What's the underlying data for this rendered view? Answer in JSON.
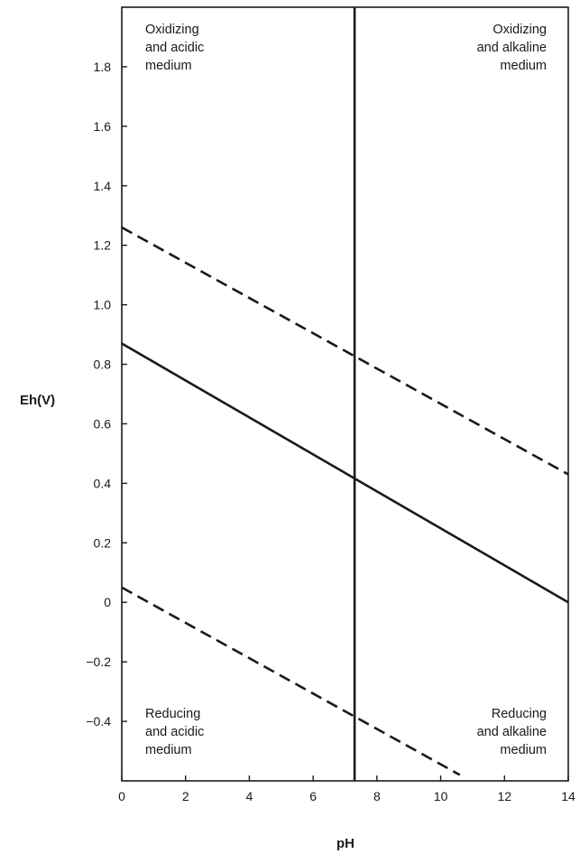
{
  "chart_data": {
    "type": "line",
    "xlabel": "pH",
    "ylabel": "Eh(V)",
    "xlim": [
      0,
      14
    ],
    "ylim": [
      -0.6,
      2.0
    ],
    "x_ticks": [
      0,
      2,
      4,
      6,
      8,
      10,
      12,
      14
    ],
    "x_tick_labels": [
      "0",
      "2",
      "4",
      "6",
      "8",
      "10",
      "12",
      "14"
    ],
    "y_ticks": [
      -0.4,
      -0.2,
      0,
      0.2,
      0.4,
      0.6,
      0.8,
      1.0,
      1.2,
      1.4,
      1.6,
      1.8
    ],
    "y_tick_labels": [
      "−0.4",
      "−0.2",
      "0",
      "0.2",
      "0.4",
      "0.6",
      "0.8",
      "1.0",
      "1.2",
      "1.4",
      "1.6",
      "1.8"
    ],
    "grid": false,
    "line_color": "#1a1a1a",
    "series": [
      {
        "style": "dashed",
        "x": [
          0,
          14
        ],
        "y": [
          1.26,
          0.43
        ]
      },
      {
        "style": "solid",
        "x": [
          0,
          14
        ],
        "y": [
          0.87,
          0.0
        ]
      },
      {
        "style": "dashed",
        "x": [
          0,
          10.6
        ],
        "y": [
          0.05,
          -0.58
        ]
      },
      {
        "style": "solid",
        "x": [
          7.3,
          7.3
        ],
        "y": [
          -0.6,
          2.0
        ]
      }
    ],
    "annotations": [
      {
        "lines": [
          "Oxidizing",
          "and acidic",
          "medium"
        ],
        "position": "top-left",
        "align": "left"
      },
      {
        "lines": [
          "Oxidizing",
          "and alkaline",
          "medium"
        ],
        "position": "top-right",
        "align": "right"
      },
      {
        "lines": [
          "Reducing",
          "and acidic",
          "medium"
        ],
        "position": "bottom-left",
        "align": "left"
      },
      {
        "lines": [
          "Reducing",
          "and alkaline",
          "medium"
        ],
        "position": "bottom-right",
        "align": "right"
      }
    ]
  }
}
